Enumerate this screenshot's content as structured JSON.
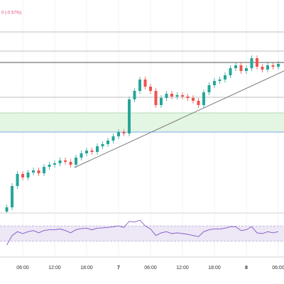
{
  "chart_data": [
    {
      "type": "candlestick",
      "header_text": "0 (-0.57%)",
      "x": [
        3,
        4,
        5,
        6,
        7,
        8,
        9,
        10,
        11,
        12,
        13,
        14,
        15,
        16,
        17,
        18,
        19,
        20,
        21,
        22,
        23,
        24,
        25,
        26,
        27,
        28,
        29,
        30,
        31,
        32,
        33,
        34,
        35,
        36,
        37,
        38,
        39,
        40,
        41,
        42,
        43,
        44,
        45,
        46,
        47,
        48,
        49,
        50,
        51,
        52,
        53,
        54
      ],
      "open": [
        2,
        8,
        38,
        55,
        50,
        57,
        60,
        56,
        65,
        68,
        70,
        74,
        72,
        68,
        78,
        84,
        88,
        86,
        94,
        97,
        102,
        108,
        114,
        112,
        160,
        172,
        188,
        178,
        172,
        152,
        162,
        168,
        164,
        166,
        164,
        162,
        158,
        152,
        170,
        180,
        186,
        188,
        194,
        204,
        208,
        200,
        204,
        218,
        206,
        202,
        208,
        206
      ],
      "high": [
        12,
        42,
        59,
        59,
        61,
        64,
        64,
        69,
        72,
        74,
        78,
        78,
        76,
        82,
        88,
        92,
        92,
        98,
        101,
        106,
        112,
        118,
        118,
        164,
        176,
        192,
        192,
        182,
        176,
        166,
        172,
        172,
        170,
        170,
        168,
        166,
        162,
        174,
        184,
        190,
        192,
        198,
        208,
        212,
        212,
        208,
        222,
        222,
        210,
        212,
        212,
        214
      ],
      "low": [
        0,
        4,
        34,
        46,
        46,
        53,
        52,
        52,
        61,
        64,
        66,
        68,
        64,
        64,
        74,
        80,
        82,
        82,
        90,
        93,
        98,
        104,
        108,
        108,
        156,
        168,
        174,
        168,
        148,
        148,
        158,
        160,
        160,
        160,
        158,
        154,
        148,
        148,
        166,
        176,
        182,
        184,
        190,
        200,
        196,
        196,
        200,
        202,
        198,
        198,
        202,
        202
      ],
      "close": [
        8,
        38,
        55,
        50,
        57,
        60,
        56,
        65,
        68,
        70,
        74,
        72,
        68,
        78,
        84,
        88,
        86,
        94,
        97,
        102,
        108,
        114,
        112,
        160,
        172,
        188,
        178,
        172,
        152,
        162,
        168,
        164,
        166,
        164,
        162,
        158,
        152,
        170,
        180,
        186,
        188,
        194,
        204,
        208,
        200,
        204,
        218,
        206,
        202,
        208,
        206,
        210
      ],
      "up_color": "#26a69a",
      "down_color": "#ef5350",
      "xlim": [
        1.73,
        55.07
      ],
      "ylim": [
        0,
        300
      ],
      "xticks": [
        {
          "value": 6,
          "label": "06:00"
        },
        {
          "value": 12,
          "label": "12:00"
        },
        {
          "value": 18,
          "label": "18:00"
        },
        {
          "value": 24,
          "label": "7"
        },
        {
          "value": 30,
          "label": "06:00"
        },
        {
          "value": 36,
          "label": "12:00"
        },
        {
          "value": 42,
          "label": "18:00"
        },
        {
          "value": 48,
          "label": "8"
        },
        {
          "value": 54,
          "label": "06:00"
        }
      ],
      "hlines": [
        255,
        228,
        212,
        163
      ],
      "zone": [
        114,
        141
      ],
      "trendline": {
        "x": [
          15.7,
          55.07
        ],
        "values": [
          64,
          200
        ]
      }
    },
    {
      "type": "line",
      "name": "RSI",
      "color": "#7e57c2",
      "values": [
        20,
        45,
        55,
        50,
        55,
        58,
        52,
        58,
        60,
        60,
        62,
        58,
        52,
        60,
        63,
        64,
        60,
        64,
        65,
        66,
        68,
        70,
        66,
        82,
        80,
        85,
        70,
        62,
        45,
        52,
        55,
        50,
        52,
        50,
        48,
        45,
        42,
        55,
        60,
        62,
        62,
        64,
        68,
        68,
        58,
        60,
        68,
        52,
        50,
        55,
        52,
        55
      ],
      "ylim": [
        0,
        100
      ],
      "bands": [
        30,
        70
      ]
    }
  ]
}
